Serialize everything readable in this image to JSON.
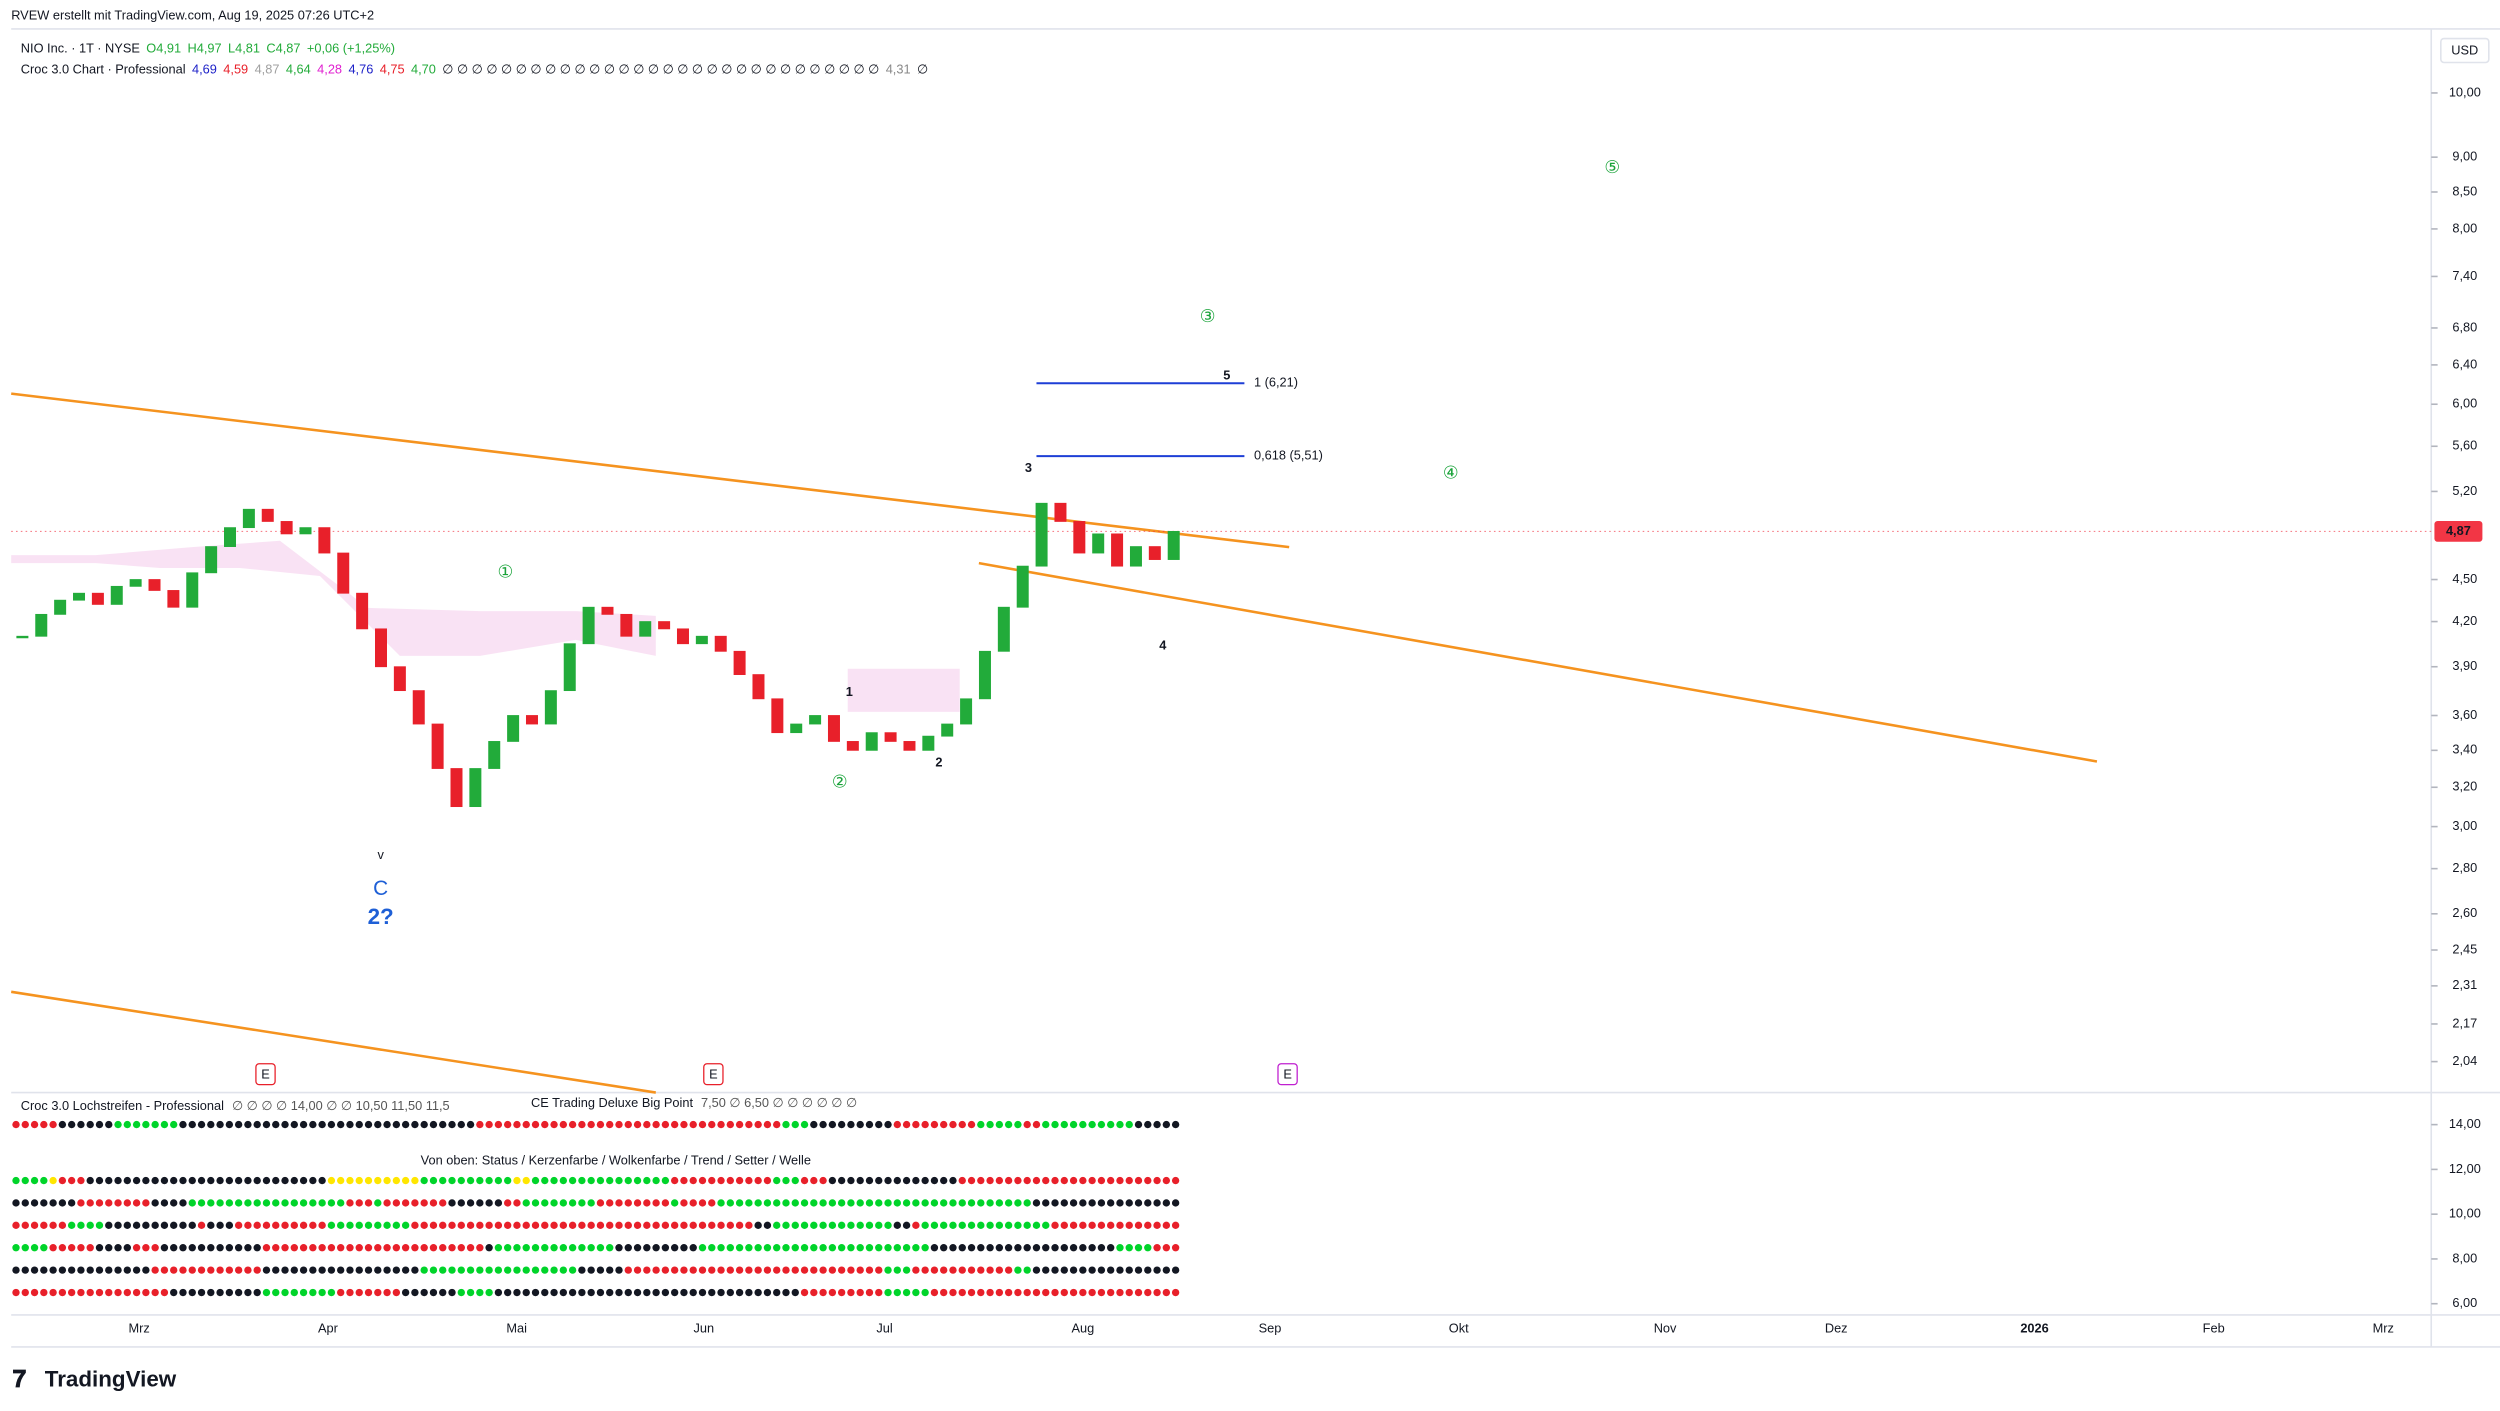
{
  "header": {
    "credit": "RVEW erstellt mit TradingView.com, Aug 19, 2025 07:26 UTC+2",
    "symbol_line": "NIO Inc. · 1T · NYSE",
    "ohlc": [
      "O4,91",
      "H4,97",
      "L4,81",
      "C4,87",
      "+0,06 (+1,25%)"
    ],
    "indicator_line": "Croc 3.0 Chart · Professional",
    "indicator_values": [
      "4,69",
      "4,59",
      "4,87",
      "4,64",
      "4,28",
      "4,76",
      "4,75",
      "4,70",
      "∅ ∅ ∅ ∅ ∅ ∅ ∅ ∅ ∅ ∅ ∅ ∅ ∅ ∅ ∅ ∅ ∅ ∅ ∅ ∅ ∅ ∅ ∅ ∅ ∅ ∅ ∅ ∅ ∅ ∅",
      "4,31",
      "∅"
    ]
  },
  "currency": "USD",
  "chart_data": {
    "type": "candlestick",
    "values": [
      4.1,
      4.25,
      4.35,
      4.4,
      4.32,
      4.45,
      4.5,
      4.42,
      4.3,
      4.55,
      4.75,
      4.9,
      5.05,
      4.95,
      4.85,
      4.9,
      4.7,
      4.4,
      4.15,
      3.9,
      3.75,
      3.55,
      3.3,
      3.1,
      3.3,
      3.45,
      3.6,
      3.55,
      3.75,
      4.05,
      4.3,
      4.25,
      4.1,
      4.2,
      4.15,
      4.05,
      4.1,
      4.0,
      3.85,
      3.7,
      3.5,
      3.55,
      3.6,
      3.45,
      3.4,
      3.5,
      3.45,
      3.4,
      3.48,
      3.55,
      3.7,
      4.0,
      4.3,
      4.6,
      5.1,
      4.95,
      4.7,
      4.85,
      4.6,
      4.75,
      4.65,
      4.87
    ],
    "up_color": "#22ab3a",
    "down_color": "#e8202a",
    "log_scale": true,
    "ylim": [
      1.944,
      11.05
    ],
    "yticks": [
      {
        "value": 10,
        "label": "10,00"
      },
      {
        "value": 9,
        "label": "9,00"
      },
      {
        "value": 8.5,
        "label": "8,50"
      },
      {
        "value": 8,
        "label": "8,00"
      },
      {
        "value": 7.4,
        "label": "7,40"
      },
      {
        "value": 6.8,
        "label": "6,80"
      },
      {
        "value": 6.4,
        "label": "6,40"
      },
      {
        "value": 6,
        "label": "6,00"
      },
      {
        "value": 5.6,
        "label": "5,60"
      },
      {
        "value": 5.2,
        "label": "5,20"
      },
      {
        "value": 4.5,
        "label": "4,50"
      },
      {
        "value": 4.2,
        "label": "4,20"
      },
      {
        "value": 3.9,
        "label": "3,90"
      },
      {
        "value": 3.6,
        "label": "3,60"
      },
      {
        "value": 3.4,
        "label": "3,40"
      },
      {
        "value": 3.2,
        "label": "3,20"
      },
      {
        "value": 3,
        "label": "3,00"
      },
      {
        "value": 2.8,
        "label": "2,80"
      },
      {
        "value": 2.6,
        "label": "2,60"
      },
      {
        "value": 2.45,
        "label": "2,45"
      },
      {
        "value": 2.31,
        "label": "2,31"
      },
      {
        "value": 2.17,
        "label": "2,17"
      },
      {
        "value": 2.04,
        "label": "2,04"
      }
    ],
    "last_price": {
      "value": 4.87,
      "label": "4,87"
    },
    "levels": [
      {
        "value": 6.21,
        "label": "1 (6,21)"
      },
      {
        "value": 5.51,
        "label": "0,618 (5,51)"
      }
    ],
    "x_labels": [
      "Mrz",
      "Apr",
      "Mai",
      "Jun",
      "Jul",
      "Aug",
      "Sep",
      "Okt",
      "Nov",
      "Dez",
      "2026",
      "Feb",
      "Mrz"
    ],
    "wave_labels": [
      "⑤",
      "③",
      "④",
      "①",
      "②",
      "5",
      "3",
      "1",
      "2",
      "4",
      "v",
      "C",
      "2?"
    ],
    "earnings": [
      "E",
      "E",
      "E"
    ]
  },
  "lower_pane": {
    "title": "Croc 3.0 Lochstreifen - Professional",
    "values_text": "∅ ∅ ∅ ∅ 14,00 ∅ ∅ 10,50 11,50 11,5",
    "overlay_title": "CE Trading Deluxe Big Point",
    "overlay_values": "7,50 ∅ 6,50 ∅ ∅ ∅ ∅ ∅ ∅",
    "legend": "Von oben: Status / Kerzenfarbe / Wolkenfarbe / Trend / Setter / Welle",
    "ylim": [
      5.5,
      15.36
    ],
    "yticks": [
      {
        "value": 14,
        "label": "14,00"
      },
      {
        "value": 12,
        "label": "12,00"
      },
      {
        "value": 10,
        "label": "10,00"
      },
      {
        "value": 8,
        "label": "8,00"
      },
      {
        "value": 6,
        "label": "6,00"
      }
    ]
  },
  "brand": "TradingView"
}
